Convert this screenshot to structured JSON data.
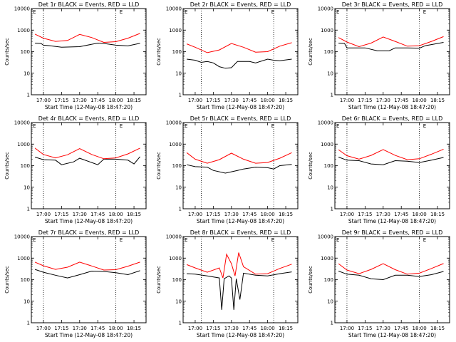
{
  "xticks": [
    "17:00",
    "17:15",
    "17:30",
    "17:45",
    "18:00",
    "18:15"
  ],
  "xlabel": "Start Time (12-May-08 18:47:20)",
  "ylabel": "Counts/sec",
  "yticks": [
    "1",
    "10",
    "100",
    "1000",
    "10000"
  ],
  "colors": {
    "events": "#000000",
    "lld": "#ff0000"
  },
  "chart_data": [
    {
      "type": "line",
      "title": "Det 1r BLACK = Events, RED = LLD",
      "xlabel": "Start Time (12-May-08 18:47:20)",
      "ylabel": "Counts/sec",
      "yscale": "log",
      "ylim": [
        1,
        10000
      ],
      "corner_label": "E",
      "vlines": [
        "17:00",
        "18:00"
      ],
      "series": [
        {
          "name": "Events",
          "color": "#000000",
          "points": [
            [
              "16:53",
              250
            ],
            [
              "16:58",
              240
            ],
            [
              "17:00",
              200
            ],
            [
              "17:05",
              190
            ],
            [
              "17:15",
              160
            ],
            [
              "17:30",
              170
            ],
            [
              "17:45",
              250
            ],
            [
              "17:50",
              240
            ],
            [
              "18:00",
              200
            ],
            [
              "18:10",
              185
            ],
            [
              "18:20",
              245
            ]
          ]
        },
        {
          "name": "LLD",
          "color": "#ff0000",
          "points": [
            [
              "16:53",
              650
            ],
            [
              "17:00",
              420
            ],
            [
              "17:10",
              300
            ],
            [
              "17:20",
              330
            ],
            [
              "17:30",
              630
            ],
            [
              "17:40",
              450
            ],
            [
              "17:50",
              270
            ],
            [
              "18:00",
              290
            ],
            [
              "18:10",
              420
            ],
            [
              "18:20",
              700
            ]
          ]
        }
      ]
    },
    {
      "type": "line",
      "title": "Det 2r BLACK = Events, RED = LLD",
      "xlabel": "Start Time (12-May-08 18:47:20)",
      "ylabel": "Counts/sec",
      "yscale": "log",
      "ylim": [
        1,
        10000
      ],
      "corner_label": "E",
      "vlines": [
        "17:05",
        "18:05"
      ],
      "series": [
        {
          "name": "Events",
          "color": "#000000",
          "points": [
            [
              "16:53",
              45
            ],
            [
              "17:00",
              40
            ],
            [
              "17:05",
              32
            ],
            [
              "17:10",
              35
            ],
            [
              "17:15",
              30
            ],
            [
              "17:20",
              20
            ],
            [
              "17:25",
              17
            ],
            [
              "17:30",
              18
            ],
            [
              "17:35",
              35
            ],
            [
              "17:45",
              35
            ],
            [
              "17:50",
              30
            ],
            [
              "18:00",
              45
            ],
            [
              "18:05",
              40
            ],
            [
              "18:10",
              38
            ],
            [
              "18:20",
              45
            ]
          ]
        },
        {
          "name": "LLD",
          "color": "#ff0000",
          "points": [
            [
              "16:53",
              230
            ],
            [
              "17:00",
              160
            ],
            [
              "17:10",
              90
            ],
            [
              "17:20",
              120
            ],
            [
              "17:30",
              240
            ],
            [
              "17:40",
              160
            ],
            [
              "17:50",
              95
            ],
            [
              "18:00",
              100
            ],
            [
              "18:10",
              180
            ],
            [
              "18:20",
              260
            ]
          ]
        }
      ]
    },
    {
      "type": "line",
      "title": "Det 3r BLACK = Events, RED = LLD",
      "xlabel": "Start Time (12-May-08 18:47:20)",
      "ylabel": "Counts/sec",
      "yscale": "log",
      "ylim": [
        1,
        10000
      ],
      "corner_label": "E",
      "vlines": [
        "17:00",
        "18:00"
      ],
      "series": [
        {
          "name": "Events",
          "color": "#000000",
          "points": [
            [
              "16:53",
              250
            ],
            [
              "16:58",
              240
            ],
            [
              "17:00",
              150
            ],
            [
              "17:15",
              150
            ],
            [
              "17:25",
              110
            ],
            [
              "17:35",
              110
            ],
            [
              "17:40",
              150
            ],
            [
              "17:50",
              150
            ],
            [
              "18:00",
              145
            ],
            [
              "18:05",
              190
            ],
            [
              "18:20",
              270
            ]
          ]
        },
        {
          "name": "LLD",
          "color": "#ff0000",
          "points": [
            [
              "16:53",
              450
            ],
            [
              "17:00",
              280
            ],
            [
              "17:10",
              170
            ],
            [
              "17:20",
              250
            ],
            [
              "17:30",
              480
            ],
            [
              "17:40",
              300
            ],
            [
              "17:50",
              180
            ],
            [
              "18:00",
              190
            ],
            [
              "18:10",
              300
            ],
            [
              "18:20",
              500
            ]
          ]
        }
      ]
    },
    {
      "type": "line",
      "title": "Det 4r BLACK = Events, RED = LLD",
      "xlabel": "Start Time (12-May-08 18:47:20)",
      "ylabel": "Counts/sec",
      "yscale": "log",
      "ylim": [
        1,
        10000
      ],
      "corner_label": "E",
      "vlines": [
        "17:00",
        "18:00"
      ],
      "series": [
        {
          "name": "Events",
          "color": "#000000",
          "points": [
            [
              "16:53",
              250
            ],
            [
              "17:00",
              190
            ],
            [
              "17:10",
              180
            ],
            [
              "17:15",
              110
            ],
            [
              "17:25",
              150
            ],
            [
              "17:30",
              220
            ],
            [
              "17:40",
              140
            ],
            [
              "17:45",
              110
            ],
            [
              "17:50",
              200
            ],
            [
              "18:00",
              200
            ],
            [
              "18:10",
              180
            ],
            [
              "18:15",
              120
            ],
            [
              "18:20",
              260
            ]
          ]
        },
        {
          "name": "LLD",
          "color": "#ff0000",
          "points": [
            [
              "16:53",
              650
            ],
            [
              "17:00",
              330
            ],
            [
              "17:10",
              230
            ],
            [
              "17:20",
              320
            ],
            [
              "17:30",
              620
            ],
            [
              "17:40",
              330
            ],
            [
              "17:50",
              210
            ],
            [
              "18:00",
              230
            ],
            [
              "18:10",
              350
            ],
            [
              "18:20",
              650
            ]
          ]
        }
      ]
    },
    {
      "type": "line",
      "title": "Det 5r BLACK = Events, RED = LLD",
      "xlabel": "Start Time (12-May-08 18:47:20)",
      "ylabel": "Counts/sec",
      "yscale": "log",
      "ylim": [
        1,
        10000
      ],
      "corner_label": "E",
      "vlines": [
        "17:05",
        "18:05"
      ],
      "series": [
        {
          "name": "Events",
          "color": "#000000",
          "points": [
            [
              "16:53",
              110
            ],
            [
              "17:00",
              90
            ],
            [
              "17:10",
              85
            ],
            [
              "17:15",
              60
            ],
            [
              "17:25",
              45
            ],
            [
              "17:35",
              60
            ],
            [
              "17:40",
              70
            ],
            [
              "17:50",
              85
            ],
            [
              "18:00",
              80
            ],
            [
              "18:05",
              70
            ],
            [
              "18:10",
              100
            ],
            [
              "18:20",
              115
            ]
          ]
        },
        {
          "name": "LLD",
          "color": "#ff0000",
          "points": [
            [
              "16:53",
              400
            ],
            [
              "17:00",
              200
            ],
            [
              "17:10",
              130
            ],
            [
              "17:20",
              190
            ],
            [
              "17:30",
              380
            ],
            [
              "17:40",
              200
            ],
            [
              "17:50",
              130
            ],
            [
              "18:00",
              140
            ],
            [
              "18:10",
              220
            ],
            [
              "18:20",
              400
            ]
          ]
        }
      ]
    },
    {
      "type": "line",
      "title": "Det 6r BLACK = Events, RED = LLD",
      "xlabel": "Start Time (12-May-08 18:47:20)",
      "ylabel": "Counts/sec",
      "yscale": "log",
      "ylim": [
        1,
        10000
      ],
      "corner_label": "E",
      "vlines": [
        "17:00",
        "18:00"
      ],
      "series": [
        {
          "name": "Events",
          "color": "#000000",
          "points": [
            [
              "16:53",
              250
            ],
            [
              "17:00",
              180
            ],
            [
              "17:10",
              170
            ],
            [
              "17:20",
              120
            ],
            [
              "17:30",
              110
            ],
            [
              "17:40",
              170
            ],
            [
              "17:50",
              160
            ],
            [
              "18:00",
              140
            ],
            [
              "18:10",
              180
            ],
            [
              "18:20",
              240
            ]
          ]
        },
        {
          "name": "LLD",
          "color": "#ff0000",
          "points": [
            [
              "16:53",
              550
            ],
            [
              "17:00",
              290
            ],
            [
              "17:10",
              200
            ],
            [
              "17:20",
              300
            ],
            [
              "17:30",
              560
            ],
            [
              "17:40",
              300
            ],
            [
              "17:50",
              190
            ],
            [
              "18:00",
              210
            ],
            [
              "18:10",
              340
            ],
            [
              "18:20",
              580
            ]
          ]
        }
      ]
    },
    {
      "type": "line",
      "title": "Det 7r BLACK = Events, RED = LLD",
      "xlabel": "Start Time (12-May-08 18:47:20)",
      "ylabel": "Counts/sec",
      "yscale": "log",
      "ylim": [
        1,
        10000
      ],
      "corner_label": "E",
      "vlines": [
        "17:00",
        "18:00"
      ],
      "series": [
        {
          "name": "Events",
          "color": "#000000",
          "points": [
            [
              "16:53",
              300
            ],
            [
              "17:00",
              220
            ],
            [
              "17:10",
              160
            ],
            [
              "17:20",
              120
            ],
            [
              "17:30",
              170
            ],
            [
              "17:40",
              250
            ],
            [
              "17:50",
              240
            ],
            [
              "18:00",
              210
            ],
            [
              "18:10",
              170
            ],
            [
              "18:20",
              260
            ]
          ]
        },
        {
          "name": "LLD",
          "color": "#ff0000",
          "points": [
            [
              "16:53",
              650
            ],
            [
              "17:00",
              440
            ],
            [
              "17:10",
              300
            ],
            [
              "17:20",
              380
            ],
            [
              "17:30",
              650
            ],
            [
              "17:40",
              430
            ],
            [
              "17:50",
              280
            ],
            [
              "18:00",
              290
            ],
            [
              "18:10",
              420
            ],
            [
              "18:20",
              650
            ]
          ]
        }
      ]
    },
    {
      "type": "line",
      "title": "Det 8r BLACK = Events, RED = LLD",
      "xlabel": "Start Time (12-May-08 18:47:20)",
      "ylabel": "Counts/sec",
      "yscale": "log",
      "ylim": [
        1,
        10000
      ],
      "corner_label": "E",
      "vlines": [
        "17:05",
        "18:05"
      ],
      "series": [
        {
          "name": "Events",
          "color": "#000000",
          "points": [
            [
              "16:53",
              190
            ],
            [
              "17:00",
              180
            ],
            [
              "17:10",
              150
            ],
            [
              "17:20",
              120
            ],
            [
              "17:22",
              4
            ],
            [
              "17:24",
              110
            ],
            [
              "17:28",
              150
            ],
            [
              "17:30",
              120
            ],
            [
              "17:32",
              4
            ],
            [
              "17:34",
              110
            ],
            [
              "17:37",
              12
            ],
            [
              "17:40",
              200
            ],
            [
              "17:50",
              160
            ],
            [
              "18:00",
              150
            ],
            [
              "18:10",
              190
            ],
            [
              "18:20",
              230
            ]
          ]
        },
        {
          "name": "LLD",
          "color": "#ff0000",
          "points": [
            [
              "16:53",
              500
            ],
            [
              "17:00",
              350
            ],
            [
              "17:10",
              220
            ],
            [
              "17:20",
              350
            ],
            [
              "17:23",
              120
            ],
            [
              "17:26",
              1500
            ],
            [
              "17:30",
              550
            ],
            [
              "17:33",
              150
            ],
            [
              "17:36",
              1800
            ],
            [
              "17:40",
              400
            ],
            [
              "17:50",
              180
            ],
            [
              "18:00",
              190
            ],
            [
              "18:10",
              330
            ],
            [
              "18:20",
              520
            ]
          ]
        }
      ]
    },
    {
      "type": "line",
      "title": "Det 9r BLACK = Events, RED = LLD",
      "xlabel": "Start Time (12-May-08 18:47:20)",
      "ylabel": "Counts/sec",
      "yscale": "log",
      "ylim": [
        1,
        10000
      ],
      "corner_label": "E",
      "vlines": [
        "17:00",
        "18:00"
      ],
      "series": [
        {
          "name": "Events",
          "color": "#000000",
          "points": [
            [
              "16:53",
              250
            ],
            [
              "17:00",
              180
            ],
            [
              "17:10",
              160
            ],
            [
              "17:20",
              110
            ],
            [
              "17:30",
              100
            ],
            [
              "17:40",
              160
            ],
            [
              "17:50",
              160
            ],
            [
              "18:00",
              140
            ],
            [
              "18:10",
              170
            ],
            [
              "18:20",
              240
            ]
          ]
        },
        {
          "name": "LLD",
          "color": "#ff0000",
          "points": [
            [
              "16:53",
              550
            ],
            [
              "17:00",
              280
            ],
            [
              "17:10",
              190
            ],
            [
              "17:20",
              300
            ],
            [
              "17:30",
              550
            ],
            [
              "17:40",
              290
            ],
            [
              "17:50",
              180
            ],
            [
              "18:00",
              200
            ],
            [
              "18:10",
              330
            ],
            [
              "18:20",
              560
            ]
          ]
        }
      ]
    }
  ]
}
